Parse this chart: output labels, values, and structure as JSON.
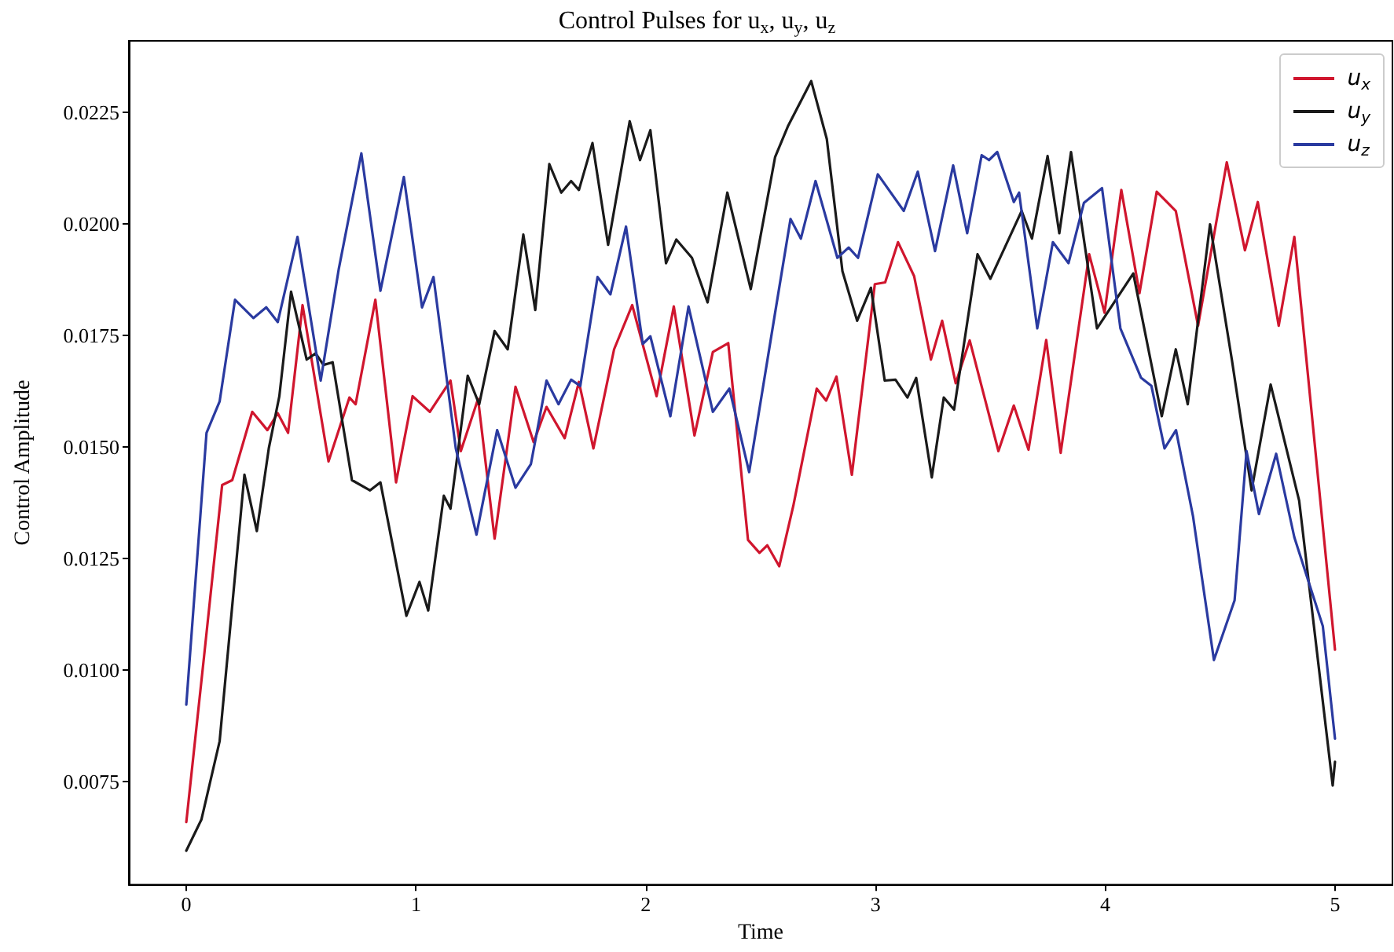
{
  "chart_data": {
    "type": "line",
    "title": "Control Pulses for u$_{x}$, u$_{y}$, u$_{z}$",
    "xlabel": "Time",
    "ylabel": "Control Amplitude",
    "xlim": [
      -0.25,
      5.25
    ],
    "xticks": [
      0,
      1,
      2,
      3,
      4,
      5
    ],
    "ylim": [
      0.0052,
      0.0241
    ],
    "yticks": [
      {
        "value": 0.0075,
        "label": "0.0075"
      },
      {
        "value": 0.01,
        "label": "0.0100"
      },
      {
        "value": 0.0125,
        "label": "0.0125"
      },
      {
        "value": 0.015,
        "label": "0.0150"
      },
      {
        "value": 0.0175,
        "label": "0.0175"
      },
      {
        "value": 0.02,
        "label": "0.0200"
      },
      {
        "value": 0.0225,
        "label": "0.0225"
      }
    ],
    "grid": false,
    "legend": "top right",
    "marker": "none",
    "line_style": "solid",
    "series": [
      {
        "name": "u$_{x}$",
        "color": "#d0162e",
        "x": [
          0,
          0.077,
          0.156,
          0.2,
          0.287,
          0.353,
          0.398,
          0.443,
          0.506,
          0.619,
          0.71,
          0.737,
          0.823,
          0.913,
          0.985,
          1.06,
          1.15,
          1.195,
          1.27,
          1.342,
          1.433,
          1.512,
          1.568,
          1.647,
          1.709,
          1.772,
          1.862,
          1.941,
          2.047,
          2.122,
          2.212,
          2.292,
          2.359,
          2.445,
          2.495,
          2.529,
          2.581,
          2.642,
          2.744,
          2.785,
          2.83,
          2.897,
          2.997,
          3.042,
          3.098,
          3.168,
          3.241,
          3.29,
          3.349,
          3.41,
          3.535,
          3.602,
          3.666,
          3.743,
          3.806,
          3.93,
          3.997,
          4.07,
          4.149,
          4.224,
          4.307,
          4.404,
          4.529,
          4.608,
          4.664,
          4.755,
          4.823,
          5
        ],
        "values": [
          0.0066,
          0.0103,
          0.01415,
          0.01426,
          0.01579,
          0.01538,
          0.01576,
          0.01532,
          0.01818,
          0.01468,
          0.01611,
          0.01596,
          0.0183,
          0.01421,
          0.01614,
          0.01579,
          0.01649,
          0.01491,
          0.01608,
          0.01295,
          0.01635,
          0.01511,
          0.0159,
          0.0152,
          0.01646,
          0.01497,
          0.01719,
          0.01818,
          0.01614,
          0.01815,
          0.01526,
          0.01713,
          0.01733,
          0.01292,
          0.01263,
          0.0128,
          0.01233,
          0.01368,
          0.01631,
          0.01604,
          0.01658,
          0.01438,
          0.01865,
          0.01869,
          0.01959,
          0.01883,
          0.01696,
          0.01783,
          0.01643,
          0.01739,
          0.01491,
          0.01593,
          0.01494,
          0.0174,
          0.01487,
          0.01932,
          0.01801,
          0.02076,
          0.01845,
          0.02072,
          0.02029,
          0.01772,
          0.02138,
          0.01941,
          0.02049,
          0.01772,
          0.01971,
          0.01046
        ]
      },
      {
        "name": "u$_{y}$",
        "color": "#1a1a1a",
        "x": [
          0,
          0.066,
          0.145,
          0.253,
          0.307,
          0.359,
          0.405,
          0.456,
          0.524,
          0.563,
          0.597,
          0.637,
          0.721,
          0.8,
          0.845,
          0.958,
          1.015,
          1.053,
          1.121,
          1.15,
          1.225,
          1.275,
          1.342,
          1.399,
          1.467,
          1.519,
          1.58,
          1.632,
          1.675,
          1.709,
          1.768,
          1.836,
          1.93,
          1.975,
          2.02,
          2.088,
          2.133,
          2.201,
          2.269,
          2.355,
          2.457,
          2.563,
          2.62,
          2.72,
          2.788,
          2.856,
          2.92,
          2.98,
          3.04,
          3.087,
          3.139,
          3.177,
          3.245,
          3.297,
          3.342,
          3.444,
          3.5,
          3.636,
          3.681,
          3.749,
          3.8,
          3.851,
          3.964,
          4.122,
          4.246,
          4.307,
          4.359,
          4.456,
          4.551,
          4.637,
          4.72,
          4.844,
          4.99,
          5
        ],
        "values": [
          0.00596,
          0.00666,
          0.00841,
          0.01438,
          0.01312,
          0.01497,
          0.01614,
          0.01848,
          0.01696,
          0.0171,
          0.01684,
          0.0169,
          0.01426,
          0.01403,
          0.01421,
          0.01122,
          0.01198,
          0.01134,
          0.01391,
          0.01362,
          0.0166,
          0.01596,
          0.0176,
          0.01719,
          0.01976,
          0.01807,
          0.02134,
          0.0207,
          0.02096,
          0.02076,
          0.02181,
          0.01953,
          0.0223,
          0.02143,
          0.0221,
          0.01912,
          0.01965,
          0.01924,
          0.01824,
          0.0207,
          0.01854,
          0.0215,
          0.0222,
          0.0232,
          0.0219,
          0.01894,
          0.01783,
          0.01857,
          0.01649,
          0.01651,
          0.01611,
          0.01655,
          0.01432,
          0.01611,
          0.01584,
          0.01932,
          0.01877,
          0.02029,
          0.01967,
          0.02152,
          0.01979,
          0.02161,
          0.01766,
          0.01889,
          0.01569,
          0.01719,
          0.01596,
          0.01999,
          0.01696,
          0.01403,
          0.0164,
          0.0138,
          0.00742,
          0.00795
        ]
      },
      {
        "name": "u$_{z}$",
        "color": "#2a3aa0",
        "x": [
          0,
          0.088,
          0.145,
          0.212,
          0.292,
          0.348,
          0.398,
          0.484,
          0.585,
          0.664,
          0.762,
          0.845,
          0.947,
          1.026,
          1.076,
          1.173,
          1.263,
          1.353,
          1.433,
          1.5,
          1.568,
          1.62,
          1.675,
          1.715,
          1.79,
          1.846,
          1.914,
          1.987,
          2.02,
          2.107,
          2.186,
          2.292,
          2.364,
          2.45,
          2.563,
          2.63,
          2.675,
          2.739,
          2.834,
          2.883,
          2.924,
          3.01,
          3.123,
          3.184,
          3.259,
          3.338,
          3.399,
          3.462,
          3.494,
          3.53,
          3.602,
          3.625,
          3.704,
          3.772,
          3.84,
          3.907,
          3.986,
          4.066,
          4.156,
          4.201,
          4.258,
          4.308,
          4.382,
          4.473,
          4.563,
          4.615,
          4.669,
          4.744,
          4.823,
          4.947,
          5
        ],
        "values": [
          0.00923,
          0.01532,
          0.01602,
          0.0183,
          0.01789,
          0.01813,
          0.0178,
          0.01971,
          0.01649,
          0.019,
          0.02158,
          0.0185,
          0.02105,
          0.01813,
          0.01881,
          0.01497,
          0.01304,
          0.01538,
          0.01409,
          0.01462,
          0.01649,
          0.01596,
          0.01651,
          0.01637,
          0.01881,
          0.01842,
          0.01994,
          0.01731,
          0.01748,
          0.01569,
          0.01815,
          0.01579,
          0.01631,
          0.01444,
          0.01801,
          0.02011,
          0.01967,
          0.02096,
          0.01924,
          0.01947,
          0.01924,
          0.02111,
          0.02029,
          0.02117,
          0.01939,
          0.02131,
          0.01979,
          0.02154,
          0.02143,
          0.02161,
          0.02049,
          0.0207,
          0.01766,
          0.01959,
          0.01912,
          0.02047,
          0.0208,
          0.01766,
          0.01655,
          0.01637,
          0.01497,
          0.01538,
          0.01345,
          0.01023,
          0.01157,
          0.01491,
          0.0135,
          0.01485,
          0.01298,
          0.01099,
          0.00847
        ]
      }
    ]
  }
}
